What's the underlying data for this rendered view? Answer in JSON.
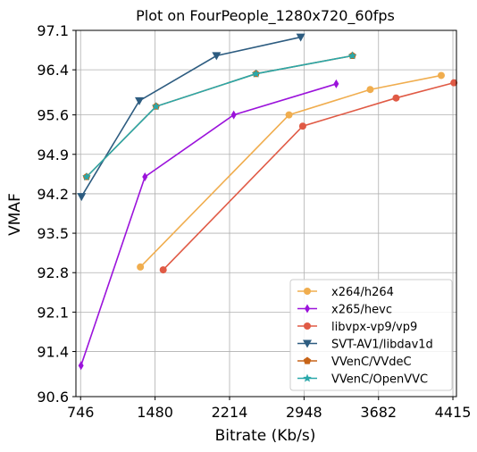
{
  "chart_data": {
    "type": "line",
    "title": "Plot on FourPeople_1280x720_60fps",
    "xlabel": "Bitrate (Kb/s)",
    "ylabel": "VMAF",
    "xlim": [
      700,
      4450
    ],
    "ylim": [
      90.6,
      97.1
    ],
    "xticks": [
      746,
      1480,
      2214,
      2948,
      3682,
      4415
    ],
    "xtick_labels": [
      "746",
      "1480",
      "2214",
      "2948",
      "3682",
      "4415"
    ],
    "yticks": [
      90.6,
      91.4,
      92.1,
      92.8,
      93.5,
      94.2,
      94.9,
      95.6,
      96.4,
      97.1
    ],
    "ytick_labels": [
      "90.6",
      "91.4",
      "92.1",
      "92.8",
      "93.5",
      "94.2",
      "94.9",
      "95.6",
      "96.4",
      "97.1"
    ],
    "grid": true,
    "legend_position": "bottom-right",
    "series": [
      {
        "name": "x264/h264",
        "color": "#f0ad4e",
        "marker": "circle",
        "x": [
          1335,
          2800,
          3600,
          4300
        ],
        "y": [
          92.9,
          95.6,
          96.05,
          96.3
        ]
      },
      {
        "name": "x265/hevc",
        "color": "#9b13db",
        "marker": "diamond",
        "x": [
          750,
          1380,
          2255,
          3265
        ],
        "y": [
          91.15,
          94.5,
          95.6,
          96.15
        ]
      },
      {
        "name": "libvpx-vp9/vp9",
        "color": "#e05a45",
        "marker": "circle",
        "x": [
          1560,
          2935,
          3855,
          4425
        ],
        "y": [
          92.85,
          95.4,
          95.9,
          96.17
        ]
      },
      {
        "name": "SVT-AV1/libdav1d",
        "color": "#2d5c80",
        "marker": "triangle-down",
        "x": [
          755,
          1325,
          2085,
          2915
        ],
        "y": [
          94.15,
          95.85,
          96.65,
          96.98
        ]
      },
      {
        "name": "VVenC/VVdeC",
        "color": "#c76418",
        "marker": "pentagon",
        "x": [
          805,
          1490,
          2475,
          3425
        ],
        "y": [
          94.5,
          95.75,
          96.33,
          96.65
        ]
      },
      {
        "name": "VVenC/OpenVVC",
        "color": "#2aa8aa",
        "marker": "star",
        "x": [
          805,
          1490,
          2475,
          3425
        ],
        "y": [
          94.5,
          95.75,
          96.33,
          96.65
        ]
      }
    ]
  }
}
